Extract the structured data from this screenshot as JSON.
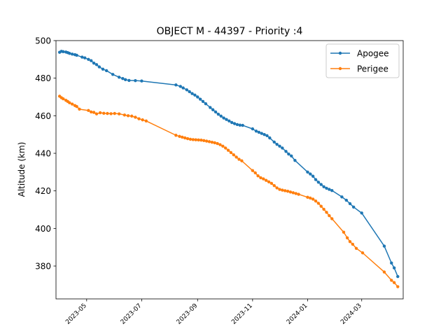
{
  "chart_data": {
    "type": "line",
    "title": "OBJECT M - 44397 - Priority :4",
    "xlabel": "",
    "ylabel": "Altitude (km)",
    "ylim": [
      362.5,
      500
    ],
    "yticks": [
      380,
      400,
      420,
      440,
      460,
      480,
      500
    ],
    "xlim": [
      "2023-03-28",
      "2024-04-16"
    ],
    "xticks": [
      "2023-05",
      "2023-07",
      "2023-09",
      "2023-11",
      "2024-01",
      "2024-03"
    ],
    "legend_position": "top-right",
    "grid": false,
    "series": [
      {
        "name": "Apogee",
        "color": "#1f77b4",
        "points": [
          [
            "2023-04-01",
            493.8
          ],
          [
            "2023-04-03",
            494.3
          ],
          [
            "2023-04-05",
            494.1
          ],
          [
            "2023-04-08",
            493.9
          ],
          [
            "2023-04-10",
            493.6
          ],
          [
            "2023-04-12",
            493.2
          ],
          [
            "2023-04-15",
            492.8
          ],
          [
            "2023-04-18",
            492.5
          ],
          [
            "2023-04-20",
            492.2
          ],
          [
            "2023-04-26",
            491.2
          ],
          [
            "2023-04-29",
            490.8
          ],
          [
            "2023-05-03",
            490.0
          ],
          [
            "2023-05-06",
            489.3
          ],
          [
            "2023-05-09",
            488.0
          ],
          [
            "2023-05-12",
            487.2
          ],
          [
            "2023-05-15",
            486.0
          ],
          [
            "2023-05-19",
            484.8
          ],
          [
            "2023-05-23",
            484.0
          ],
          [
            "2023-05-30",
            482.0
          ],
          [
            "2023-06-06",
            480.5
          ],
          [
            "2023-06-10",
            479.8
          ],
          [
            "2023-06-13",
            479.2
          ],
          [
            "2023-06-17",
            478.8
          ],
          [
            "2023-06-24",
            478.7
          ],
          [
            "2023-07-01",
            478.5
          ],
          [
            "2023-08-08",
            476.4
          ],
          [
            "2023-08-13",
            475.6
          ],
          [
            "2023-08-16",
            474.8
          ],
          [
            "2023-08-20",
            473.8
          ],
          [
            "2023-08-23",
            472.8
          ],
          [
            "2023-08-26",
            471.8
          ],
          [
            "2023-08-29",
            471.0
          ],
          [
            "2023-09-01",
            470.0
          ],
          [
            "2023-09-04",
            468.8
          ],
          [
            "2023-09-07",
            467.6
          ],
          [
            "2023-09-10",
            466.4
          ],
          [
            "2023-09-15",
            464.4
          ],
          [
            "2023-09-18",
            463.2
          ],
          [
            "2023-09-21",
            462.0
          ],
          [
            "2023-09-24",
            460.8
          ],
          [
            "2023-09-27",
            459.8
          ],
          [
            "2023-09-30",
            458.8
          ],
          [
            "2023-10-03",
            458.0
          ],
          [
            "2023-10-06",
            457.2
          ],
          [
            "2023-10-09",
            456.4
          ],
          [
            "2023-10-12",
            455.8
          ],
          [
            "2023-10-15",
            455.3
          ],
          [
            "2023-10-18",
            455.0
          ],
          [
            "2023-10-21",
            454.9
          ],
          [
            "2023-11-01",
            453.0
          ],
          [
            "2023-11-05",
            451.8
          ],
          [
            "2023-11-08",
            451.2
          ],
          [
            "2023-11-11",
            450.6
          ],
          [
            "2023-11-14",
            450.0
          ],
          [
            "2023-11-17",
            449.4
          ],
          [
            "2023-11-20",
            448.2
          ],
          [
            "2023-11-25",
            446.0
          ],
          [
            "2023-11-28",
            444.8
          ],
          [
            "2023-12-01",
            443.8
          ],
          [
            "2023-12-04",
            442.8
          ],
          [
            "2023-12-08",
            441.0
          ],
          [
            "2023-12-11",
            439.6
          ],
          [
            "2023-12-14",
            438.6
          ],
          [
            "2023-12-18",
            436.2
          ],
          [
            "2024-01-01",
            430.0
          ],
          [
            "2024-01-04",
            429.0
          ],
          [
            "2024-01-07",
            427.8
          ],
          [
            "2024-01-10",
            426.0
          ],
          [
            "2024-01-13",
            424.6
          ],
          [
            "2024-01-16",
            423.4
          ],
          [
            "2024-01-19",
            422.2
          ],
          [
            "2024-01-22",
            421.4
          ],
          [
            "2024-01-25",
            420.8
          ],
          [
            "2024-01-28",
            420.2
          ],
          [
            "2024-02-08",
            416.8
          ],
          [
            "2024-02-13",
            415.0
          ],
          [
            "2024-02-17",
            413.2
          ],
          [
            "2024-02-21",
            411.4
          ],
          [
            "2024-03-01",
            408.2
          ],
          [
            "2024-03-26",
            390.6
          ],
          [
            "2024-04-03",
            381.6
          ],
          [
            "2024-04-06",
            379.0
          ],
          [
            "2024-04-10",
            374.4
          ]
        ]
      },
      {
        "name": "Perigee",
        "color": "#ff7f0e",
        "points": [
          [
            "2023-04-01",
            470.4
          ],
          [
            "2023-04-03",
            469.6
          ],
          [
            "2023-04-05",
            469.0
          ],
          [
            "2023-04-08",
            468.2
          ],
          [
            "2023-04-10",
            467.6
          ],
          [
            "2023-04-12",
            466.9
          ],
          [
            "2023-04-15",
            466.2
          ],
          [
            "2023-04-18",
            465.4
          ],
          [
            "2023-04-20",
            464.9
          ],
          [
            "2023-04-23",
            463.5
          ],
          [
            "2023-05-03",
            462.8
          ],
          [
            "2023-05-06",
            462.0
          ],
          [
            "2023-05-09",
            461.8
          ],
          [
            "2023-05-12",
            461.0
          ],
          [
            "2023-05-16",
            461.6
          ],
          [
            "2023-05-20",
            461.3
          ],
          [
            "2023-05-24",
            461.2
          ],
          [
            "2023-05-28",
            461.1
          ],
          [
            "2023-06-01",
            461.2
          ],
          [
            "2023-06-06",
            461.0
          ],
          [
            "2023-06-12",
            460.4
          ],
          [
            "2023-06-16",
            460.0
          ],
          [
            "2023-06-20",
            459.8
          ],
          [
            "2023-06-24",
            459.2
          ],
          [
            "2023-06-28",
            458.4
          ],
          [
            "2023-07-02",
            457.8
          ],
          [
            "2023-07-06",
            457.2
          ],
          [
            "2023-08-08",
            449.6
          ],
          [
            "2023-08-12",
            449.0
          ],
          [
            "2023-08-15",
            448.6
          ],
          [
            "2023-08-18",
            448.2
          ],
          [
            "2023-08-21",
            447.8
          ],
          [
            "2023-08-24",
            447.5
          ],
          [
            "2023-08-27",
            447.3
          ],
          [
            "2023-08-30",
            447.2
          ],
          [
            "2023-09-02",
            447.1
          ],
          [
            "2023-09-05",
            447.0
          ],
          [
            "2023-09-08",
            446.8
          ],
          [
            "2023-09-11",
            446.5
          ],
          [
            "2023-09-14",
            446.2
          ],
          [
            "2023-09-17",
            445.9
          ],
          [
            "2023-09-20",
            445.6
          ],
          [
            "2023-09-23",
            445.2
          ],
          [
            "2023-09-26",
            444.6
          ],
          [
            "2023-09-29",
            443.8
          ],
          [
            "2023-10-02",
            442.8
          ],
          [
            "2023-10-05",
            441.6
          ],
          [
            "2023-10-08",
            440.4
          ],
          [
            "2023-10-11",
            439.2
          ],
          [
            "2023-10-14",
            438.0
          ],
          [
            "2023-10-17",
            436.8
          ],
          [
            "2023-10-20",
            436.0
          ],
          [
            "2023-11-01",
            430.8
          ],
          [
            "2023-11-04",
            429.6
          ],
          [
            "2023-11-07",
            428.0
          ],
          [
            "2023-11-10",
            427.0
          ],
          [
            "2023-11-13",
            426.4
          ],
          [
            "2023-11-16",
            425.6
          ],
          [
            "2023-11-19",
            424.8
          ],
          [
            "2023-11-22",
            424.0
          ],
          [
            "2023-11-25",
            422.8
          ],
          [
            "2023-11-28",
            421.6
          ],
          [
            "2023-12-01",
            420.8
          ],
          [
            "2023-12-04",
            420.4
          ],
          [
            "2023-12-07",
            420.1
          ],
          [
            "2023-12-10",
            419.8
          ],
          [
            "2023-12-13",
            419.4
          ],
          [
            "2023-12-16",
            419.0
          ],
          [
            "2023-12-19",
            418.6
          ],
          [
            "2023-12-22",
            418.2
          ],
          [
            "2024-01-01",
            416.6
          ],
          [
            "2024-01-04",
            416.2
          ],
          [
            "2024-01-07",
            415.6
          ],
          [
            "2024-01-10",
            414.6
          ],
          [
            "2024-01-13",
            413.4
          ],
          [
            "2024-01-16",
            411.8
          ],
          [
            "2024-01-19",
            410.2
          ],
          [
            "2024-01-22",
            408.6
          ],
          [
            "2024-01-25",
            406.8
          ],
          [
            "2024-01-28",
            405.2
          ],
          [
            "2024-02-10",
            398.0
          ],
          [
            "2024-02-14",
            395.0
          ],
          [
            "2024-02-17",
            393.0
          ],
          [
            "2024-02-20",
            391.6
          ],
          [
            "2024-02-24",
            389.4
          ],
          [
            "2024-03-02",
            387.0
          ],
          [
            "2024-03-26",
            376.8
          ],
          [
            "2024-04-03",
            372.4
          ],
          [
            "2024-04-06",
            371.2
          ],
          [
            "2024-04-10",
            369.0
          ]
        ]
      }
    ]
  }
}
